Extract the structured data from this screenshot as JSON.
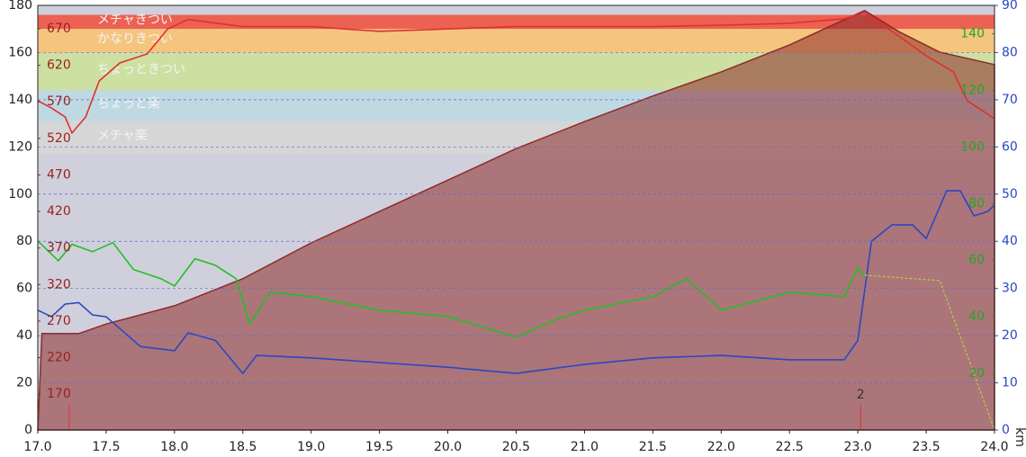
{
  "chart_data": {
    "type": "line",
    "xlim": [
      17.0,
      24.0
    ],
    "xticks": [
      {
        "value": 17.0,
        "label": "17.0"
      },
      {
        "value": 17.5,
        "label": "17.5"
      },
      {
        "value": 18.0,
        "label": "18.0"
      },
      {
        "value": 18.5,
        "label": "18.5"
      },
      {
        "value": 19.0,
        "label": "19.0"
      },
      {
        "value": 19.5,
        "label": "19.5"
      },
      {
        "value": 20.0,
        "label": "20.0"
      },
      {
        "value": 20.5,
        "label": "20.5"
      },
      {
        "value": 21.0,
        "label": "21.0"
      },
      {
        "value": 21.5,
        "label": "21.5"
      },
      {
        "value": 22.0,
        "label": "22.0"
      },
      {
        "value": 22.5,
        "label": "22.5"
      },
      {
        "value": 23.0,
        "label": "23.0"
      },
      {
        "value": 23.5,
        "label": "23.5"
      },
      {
        "value": 24.0,
        "label": "24.0"
      }
    ],
    "x_unit": "km",
    "ylim": [
      0,
      180
    ],
    "yticks": [
      0,
      20,
      40,
      60,
      80,
      100,
      120,
      140,
      160,
      180
    ],
    "y2lim": [
      0,
      90
    ],
    "y2ticks": [
      0,
      10,
      20,
      30,
      40,
      50,
      60,
      70,
      80,
      90
    ],
    "y3lim": [
      121,
      702
    ],
    "y3ticks": [
      170,
      220,
      270,
      320,
      370,
      420,
      470,
      520,
      570,
      620,
      670
    ],
    "y4lim": [
      0,
      150
    ],
    "y4ticks": [
      20,
      40,
      60,
      80,
      100,
      120,
      140
    ],
    "grid": true,
    "zones": [
      {
        "label": "メチャきつい",
        "from": 170,
        "to": 176,
        "color": "#ec6152"
      },
      {
        "label": "かなりきつい",
        "from": 160,
        "to": 170,
        "color": "#f5c57e"
      },
      {
        "label": "ちょっときつい",
        "from": 144,
        "to": 160,
        "color": "#cde0a2"
      },
      {
        "label": "ちょっと楽",
        "from": 131,
        "to": 144,
        "color": "#bfd9e3"
      },
      {
        "label": "メチャ楽",
        "from": 117,
        "to": 131,
        "color": "#d6d6d6"
      }
    ],
    "markers": [
      {
        "x": 17.23
      },
      {
        "x": 23.02,
        "label": "2"
      }
    ],
    "series": [
      {
        "kind": "area",
        "axis": "y3",
        "color": "#8e2a2a",
        "x": [
          17.0,
          17.03,
          17.3,
          17.5,
          18.0,
          18.5,
          19.0,
          19.5,
          20.0,
          20.5,
          21.0,
          21.5,
          22.0,
          22.5,
          23.05,
          23.3,
          23.6,
          24.0
        ],
        "values": [
          121,
          253,
          253,
          266,
          291,
          328,
          377,
          420,
          463,
          506,
          543,
          578,
          611,
          648,
          695,
          666,
          638,
          621
        ]
      },
      {
        "kind": "line",
        "axis": "y",
        "color": "#e03030",
        "x": [
          17.0,
          17.1,
          17.2,
          17.25,
          17.35,
          17.45,
          17.6,
          17.8,
          17.95,
          18.1,
          18.5,
          19.0,
          19.5,
          20.0,
          20.5,
          21.0,
          21.5,
          22.0,
          22.5,
          22.9,
          23.05,
          23.3,
          23.5,
          23.7,
          23.8,
          24.0
        ],
        "values": [
          139.6,
          136.5,
          132.7,
          125.9,
          132.7,
          148,
          155.6,
          159.4,
          170,
          174,
          171,
          171,
          169,
          170,
          171,
          171,
          171,
          171.6,
          172.4,
          174.3,
          177,
          167,
          158.7,
          151.8,
          139.6,
          132
        ]
      },
      {
        "kind": "line",
        "axis": "y2",
        "color": "#2a48c0",
        "x": [
          17.0,
          17.1,
          17.2,
          17.3,
          17.4,
          17.5,
          17.6,
          17.75,
          18.0,
          18.1,
          18.3,
          18.5,
          18.6,
          19.0,
          19.5,
          20.0,
          20.5,
          21.0,
          21.5,
          22.0,
          22.5,
          22.9,
          23.0,
          23.1,
          23.25,
          23.4,
          23.5,
          23.65,
          23.75,
          23.85,
          23.95,
          24.0
        ],
        "values": [
          25.4,
          24,
          26.7,
          27,
          24.4,
          24,
          21.5,
          17.7,
          16.8,
          20.6,
          19,
          12,
          15.8,
          15.3,
          14.3,
          13.3,
          12,
          13.9,
          15.3,
          15.8,
          14.9,
          14.9,
          19,
          40,
          43.5,
          43.5,
          40.6,
          50.7,
          50.7,
          45.4,
          46.3,
          47.7
        ]
      },
      {
        "kind": "line",
        "axis": "y4",
        "color": "#22c022",
        "x": [
          17.0,
          17.15,
          17.25,
          17.4,
          17.55,
          17.7,
          17.9,
          18.0,
          18.15,
          18.3,
          18.45,
          18.55,
          18.7,
          19.0,
          19.5,
          20.0,
          20.5,
          20.8,
          21.0,
          21.5,
          21.75,
          22.0,
          22.5,
          22.9,
          23.0,
          23.05
        ],
        "values": [
          66.8,
          59.8,
          65.6,
          63,
          66.2,
          56.7,
          53.5,
          50.9,
          60.5,
          58.2,
          53.5,
          37.6,
          48.7,
          47.1,
          42.3,
          40.1,
          32.8,
          39.2,
          42.3,
          47.1,
          53.5,
          42.3,
          48.7,
          47.1,
          57.3,
          54.1
        ]
      },
      {
        "kind": "dotted",
        "axis": "y4",
        "color": "#b5cf3c",
        "x": [
          23.05,
          23.6,
          24.0
        ],
        "values": [
          54.7,
          52.8,
          0
        ]
      }
    ]
  }
}
